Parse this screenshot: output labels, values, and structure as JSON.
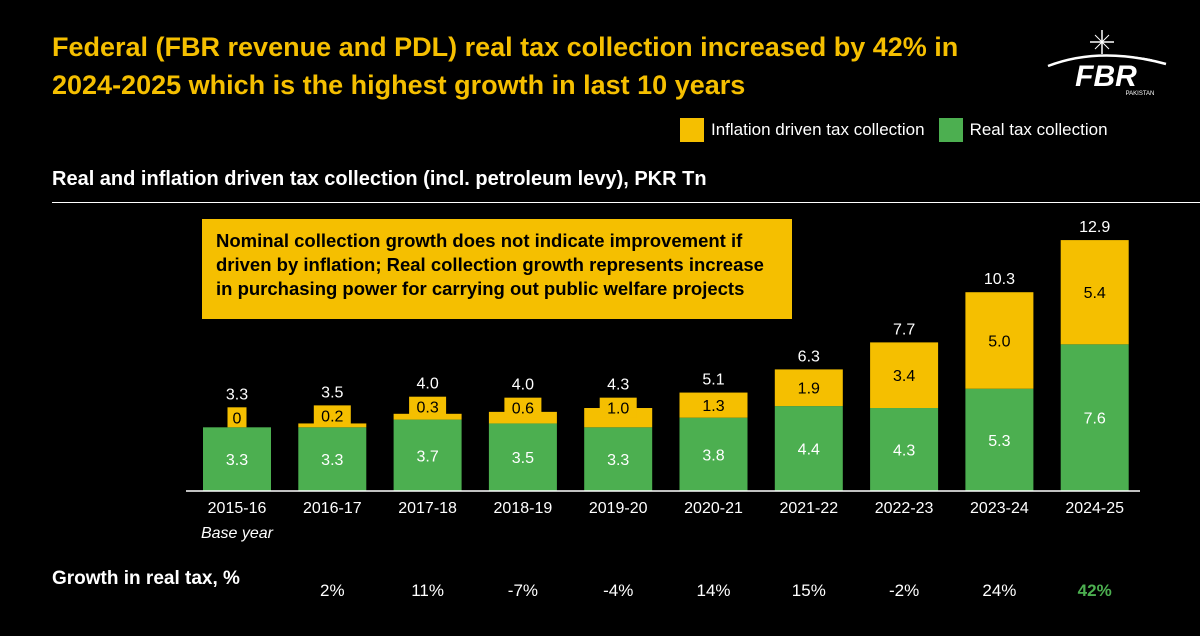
{
  "header": {
    "title": "Federal (FBR revenue and PDL) real tax collection increased by 42% in 2024-2025 which is the highest growth in last 10 years",
    "logo_text": "FBR",
    "logo_subtext": "PAKISTAN"
  },
  "legend": {
    "inflation_label": "Inflation driven tax collection",
    "real_label": "Real tax collection"
  },
  "subtitle": "Real and inflation driven tax collection (incl. petroleum levy), PKR Tn",
  "note": "Nominal collection growth does not indicate improvement if driven by inflation; Real collection growth represents increase in purchasing power for carrying out public welfare projects",
  "growth_label": "Growth in real tax, %",
  "colors": {
    "inflation": "#f5bf00",
    "real": "#4caf50",
    "highlight": "#4caf50"
  },
  "chart_data": {
    "type": "bar",
    "stacked": true,
    "categories": [
      "2015-16",
      "2016-17",
      "2017-18",
      "2018-19",
      "2019-20",
      "2020-21",
      "2021-22",
      "2022-23",
      "2023-24",
      "2024-25"
    ],
    "category_sublabels": [
      "Base year",
      "",
      "",
      "",
      "",
      "",
      "",
      "",
      "",
      ""
    ],
    "series": [
      {
        "name": "Real tax collection",
        "values": [
          3.3,
          3.3,
          3.7,
          3.5,
          3.3,
          3.8,
          4.4,
          4.3,
          5.3,
          7.6
        ]
      },
      {
        "name": "Inflation driven tax collection",
        "values": [
          0,
          0.2,
          0.3,
          0.6,
          1.0,
          1.3,
          1.9,
          3.4,
          5.0,
          5.4
        ]
      }
    ],
    "totals": [
      3.3,
      3.5,
      4.0,
      4.0,
      4.3,
      5.1,
      6.3,
      7.7,
      10.3,
      12.9
    ],
    "growth": [
      "",
      "2%",
      "11%",
      "-7%",
      "-4%",
      "14%",
      "15%",
      "-2%",
      "24%",
      "42%"
    ],
    "ylim": [
      0,
      13
    ]
  }
}
